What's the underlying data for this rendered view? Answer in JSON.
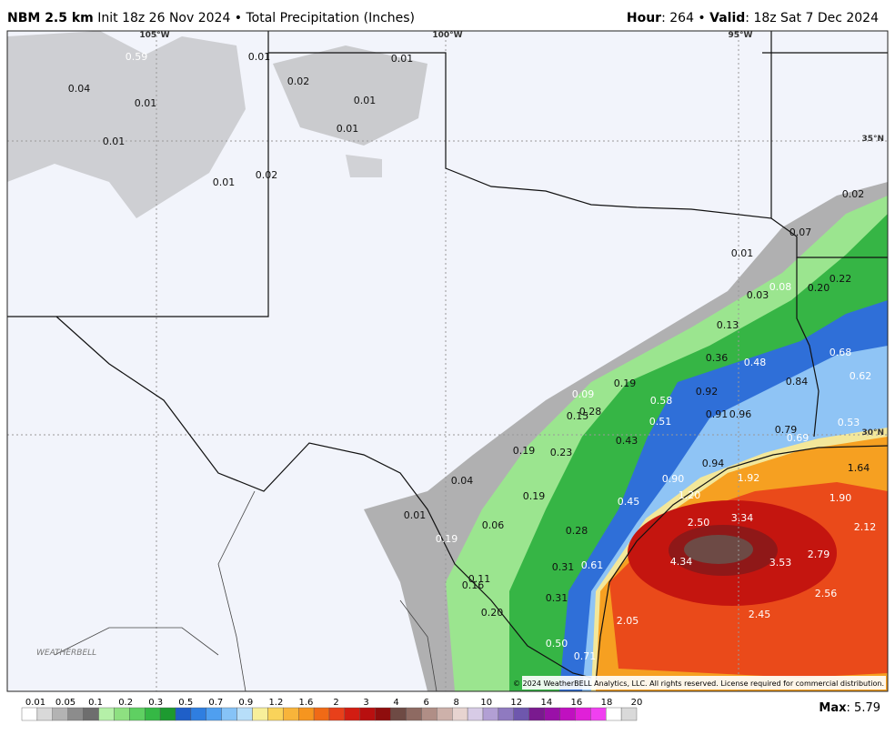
{
  "header": {
    "model": "NBM 2.5 km",
    "init": "Init 18z 26 Nov 2024 • Total Precipitation (Inches)",
    "hour_label": "Hour",
    "hour_value": ": 264 • ",
    "valid_label": "Valid",
    "valid_value": ": 18z Sat 7 Dec 2024"
  },
  "grid_labels": [
    "105°W",
    "100°W",
    "95°W",
    "35°N",
    "30°N"
  ],
  "map_labels": [
    "0.59",
    "0.04",
    "0.01",
    "0.01",
    "0.01",
    "0.02",
    "0.01",
    "0.01",
    "0.02",
    "0.01",
    "0.01",
    "0.02",
    "0.07",
    "0.01",
    "0.08",
    "0.20",
    "0.22",
    "0.03",
    "0.13",
    "0.68",
    "0.36",
    "0.48",
    "0.84",
    "0.62",
    "0.19",
    "0.58",
    "0.92",
    "0.09",
    "0.28",
    "0.15",
    "0.91",
    "0.96",
    "0.51",
    "0.53",
    "0.79",
    "0.69",
    "0.43",
    "0.19",
    "0.23",
    "0.94",
    "0.90",
    "1.92",
    "1.64",
    "0.04",
    "1.20",
    "1.90",
    "0.19",
    "0.45",
    "2.50",
    "3.34",
    "2.12",
    "0.01",
    "0.06",
    "0.28",
    "0.19",
    "2.79",
    "4.34",
    "3.53",
    "0.31",
    "0.61",
    "0.11",
    "0.16",
    "2.56",
    "0.31",
    "0.20",
    "2.05",
    "2.45",
    "0.50",
    "0.71"
  ],
  "copyright": "© 2024 WeatherBELL Analytics, LLC. All rights reserved. License required for commercial distribution.",
  "colorbar": {
    "labels": [
      "0.01",
      "0.05",
      "0.1",
      "0.2",
      "0.3",
      "0.5",
      "0.7",
      "0.9",
      "1.2",
      "1.6",
      "2",
      "3",
      "4",
      "6",
      "8",
      "10",
      "12",
      "14",
      "16",
      "18",
      "20"
    ]
  },
  "max": {
    "label": "Max",
    "value": ": 5.79"
  }
}
